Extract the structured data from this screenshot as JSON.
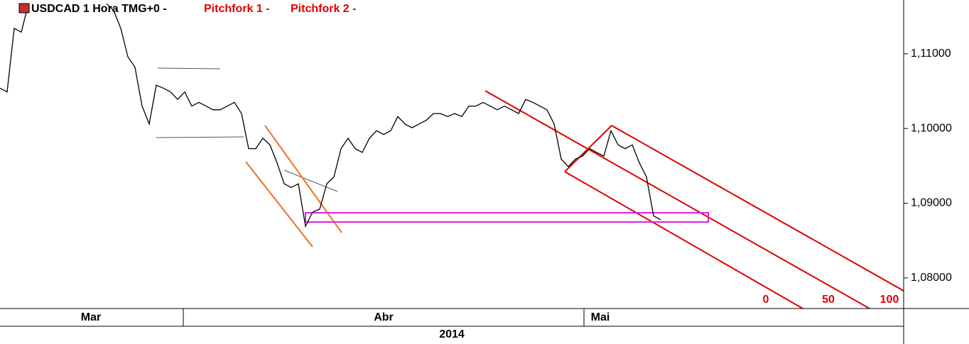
{
  "chart_data": {
    "type": "line",
    "legend": {
      "symbol": "USDCAD 1 Hora TMG+0 -",
      "studies": [
        "Pitchfork 1 -",
        "Pitchfork 2 -"
      ]
    },
    "pitchfork_levels": [
      "0",
      "50",
      "100"
    ],
    "months": [
      "Mar",
      "Abr",
      "Mai"
    ],
    "year": "2014",
    "series": [
      {
        "name": "USDCAD",
        "color": "#000000",
        "values": [
          1.1054,
          1.1049,
          1.1134,
          1.1129,
          1.1167,
          null,
          null,
          null,
          null,
          null,
          null,
          null,
          null,
          null,
          null,
          1.1167,
          1.1158,
          1.1134,
          1.1096,
          1.1082,
          1.103,
          1.1006,
          1.1058,
          1.1054,
          1.1049,
          1.1039,
          1.1049,
          1.103,
          1.1035,
          1.103,
          1.1025,
          1.1025,
          1.103,
          1.1035,
          1.102,
          1.0973,
          1.0973,
          1.0987,
          1.0978,
          1.0954,
          1.0926,
          1.0921,
          1.0926,
          1.0869,
          1.0888,
          1.0892,
          1.0926,
          1.0935,
          1.0973,
          1.0987,
          1.0973,
          1.0968,
          1.0987,
          1.0997,
          1.0992,
          1.0997,
          1.1016,
          1.1006,
          1.1001,
          1.1006,
          1.1011,
          1.102,
          1.102,
          1.1016,
          1.102,
          1.1016,
          1.103,
          1.103,
          1.1035,
          1.103,
          1.1025,
          1.103,
          1.1025,
          1.102,
          1.1039,
          1.1035,
          1.103,
          1.1025,
          1.1006,
          1.0959,
          1.0949,
          1.0959,
          1.0963,
          1.0973,
          1.0968,
          1.0963,
          1.0997,
          1.0978,
          1.0973,
          1.0978,
          1.0954,
          1.0935,
          1.0883,
          1.0878
        ]
      }
    ],
    "ylim": [
      1.0759,
      1.1172
    ],
    "yticks": [
      {
        "value": 1.08,
        "label": "1,08000"
      },
      {
        "value": 1.09,
        "label": "1,09000"
      },
      {
        "value": 1.1,
        "label": "1,10000"
      },
      {
        "value": 1.11,
        "label": "1,11000"
      }
    ]
  }
}
